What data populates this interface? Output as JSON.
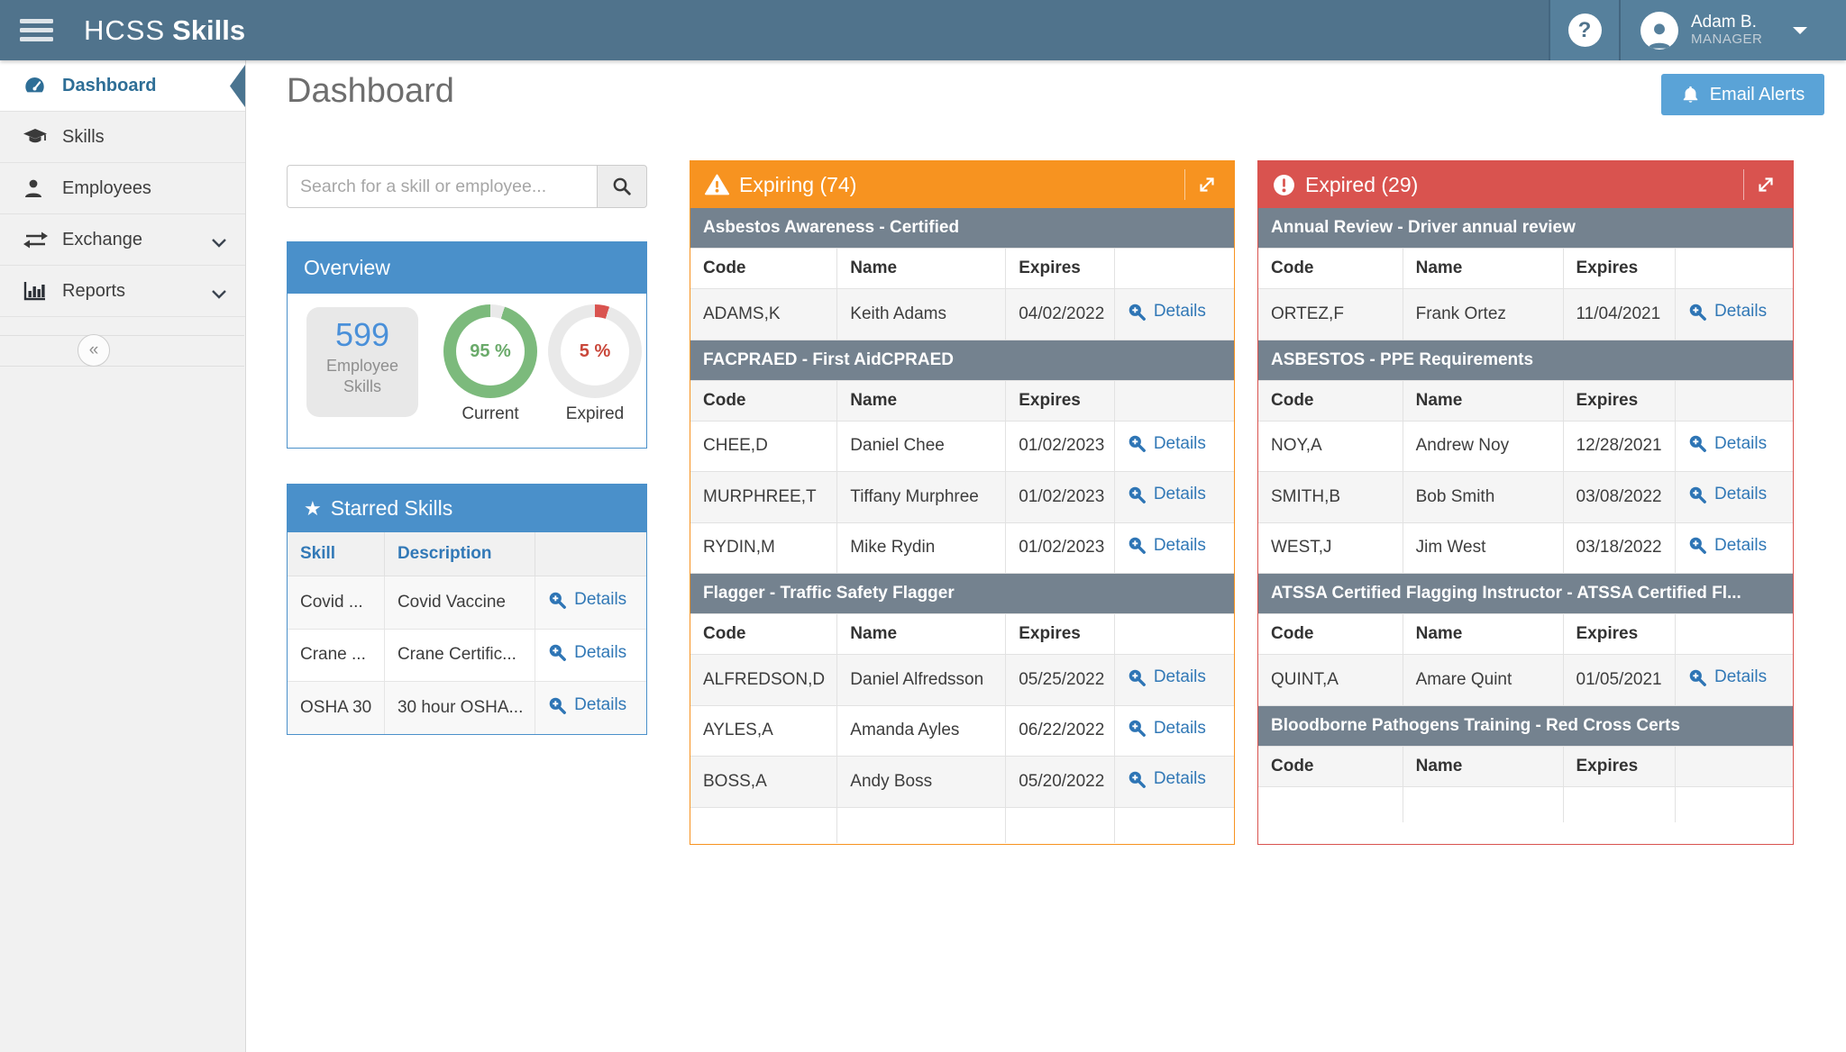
{
  "navbar": {
    "brand_light": "HCSS",
    "brand_bold": "Skills",
    "help_glyph": "?",
    "user_name": "Adam B.",
    "user_role": "MANAGER"
  },
  "sidebar": {
    "items": [
      {
        "label": "Dashboard",
        "icon": "gauge-icon",
        "active": true
      },
      {
        "label": "Skills",
        "icon": "graduation-cap-icon"
      },
      {
        "label": "Employees",
        "icon": "person-icon"
      },
      {
        "label": "Exchange",
        "icon": "exchange-arrows-icon",
        "expandable": true
      },
      {
        "label": "Reports",
        "icon": "bar-chart-icon",
        "expandable": true
      }
    ],
    "collapse_glyph": "«"
  },
  "page": {
    "title": "Dashboard",
    "email_alerts_label": "Email Alerts"
  },
  "search": {
    "placeholder": "Search for a skill or employee...",
    "value": ""
  },
  "overview": {
    "title": "Overview",
    "count": "599",
    "count_label": "Employee Skills",
    "current_value": 95,
    "current_pct": "95 %",
    "current_label": "Current",
    "expired_value": 5,
    "expired_pct": "5 %",
    "expired_label": "Expired"
  },
  "starred": {
    "title": "Starred Skills",
    "columns": [
      "Skill",
      "Description"
    ],
    "details_label": "Details",
    "rows": [
      {
        "skill": "Covid ...",
        "description": "Covid Vaccine"
      },
      {
        "skill": "Crane ...",
        "description": "Crane Certific..."
      },
      {
        "skill": "OSHA 30",
        "description": "30 hour OSHA..."
      }
    ]
  },
  "expiring": {
    "title": "Expiring (74)",
    "columns": [
      "Code",
      "Name",
      "Expires"
    ],
    "details_label": "Details",
    "groups": [
      {
        "name": "Asbestos Awareness - Certified",
        "rows": [
          [
            "ADAMS,K",
            "Keith Adams",
            "04/02/2022"
          ]
        ]
      },
      {
        "name": "FACPRAED - First AidCPRAED",
        "rows": [
          [
            "CHEE,D",
            "Daniel Chee",
            "01/02/2023"
          ],
          [
            "MURPHREE,T",
            "Tiffany Murphree",
            "01/02/2023"
          ],
          [
            "RYDIN,M",
            "Mike Rydin",
            "01/02/2023"
          ]
        ]
      },
      {
        "name": "Flagger - Traffic Safety Flagger",
        "rows": [
          [
            "ALFREDSON,D",
            "Daniel Alfredsson",
            "05/25/2022"
          ],
          [
            "AYLES,A",
            "Amanda Ayles",
            "06/22/2022"
          ],
          [
            "BOSS,A",
            "Andy Boss",
            "05/20/2022"
          ]
        ]
      }
    ]
  },
  "expired": {
    "title": "Expired (29)",
    "columns": [
      "Code",
      "Name",
      "Expires"
    ],
    "details_label": "Details",
    "groups": [
      {
        "name": "Annual Review - Driver annual review",
        "rows": [
          [
            "ORTEZ,F",
            "Frank Ortez",
            "11/04/2021"
          ]
        ]
      },
      {
        "name": "ASBESTOS - PPE Requirements",
        "rows": [
          [
            "NOY,A",
            "Andrew Noy",
            "12/28/2021"
          ],
          [
            "SMITH,B",
            "Bob Smith",
            "03/08/2022"
          ],
          [
            "WEST,J",
            "Jim West",
            "03/18/2022"
          ]
        ]
      },
      {
        "name": "ATSSA Certified Flagging Instructor - ATSSA Certified Fl...",
        "rows": [
          [
            "QUINT,A",
            "Amare Quint",
            "01/05/2021"
          ]
        ]
      },
      {
        "name": "Bloodborne Pathogens Training - Red Cross Certs",
        "rows": []
      }
    ]
  },
  "colors": {
    "navbar": "#50738c",
    "panel_blue": "#4a90ca",
    "expiring_orange": "#f79320",
    "expired_red": "#d9534f",
    "group_slate": "#74828f",
    "link_blue": "#3178b6",
    "donut_green": "#7cba7c",
    "donut_track": "#e9e9e9",
    "count_blue": "#4a90d9"
  }
}
